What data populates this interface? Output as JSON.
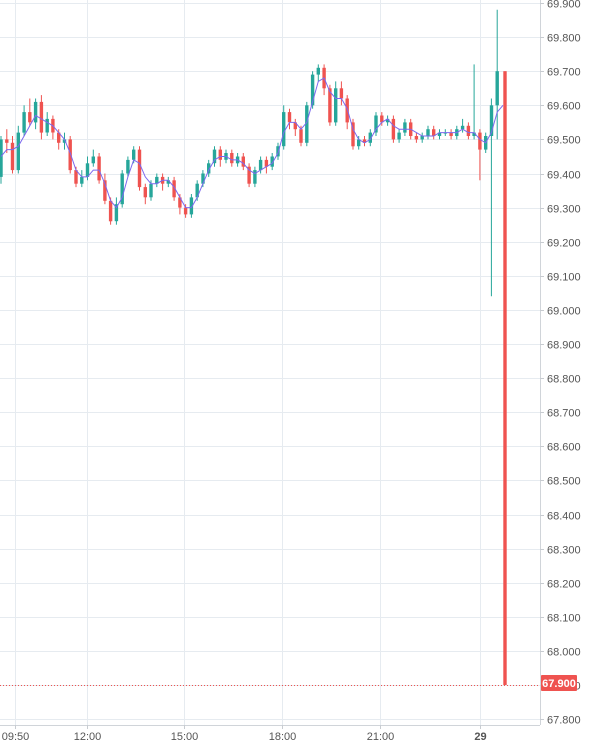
{
  "chart_data": {
    "type": "candlestick",
    "title": "",
    "xlabel": "",
    "ylabel": "",
    "ylim": [
      67.75,
      69.92
    ],
    "y_ticks": [
      "69.900",
      "69.800",
      "69.700",
      "69.600",
      "69.500",
      "69.400",
      "69.300",
      "69.200",
      "69.100",
      "69.000",
      "68.900",
      "68.800",
      "68.700",
      "68.600",
      "68.500",
      "68.400",
      "68.300",
      "68.200",
      "68.100",
      "68.000",
      "67.900",
      "67.800"
    ],
    "x_ticks": [
      "09:50",
      "12:00",
      "15:00",
      "18:00",
      "21:00",
      "29"
    ],
    "current_price_label": "67.900",
    "current_price": 67.9,
    "grid": true,
    "colors": {
      "up": "#26a69a",
      "down": "#ef5350",
      "ma": "#7b68ee",
      "grid": "#e6ebf0",
      "axis_text": "#555555",
      "price_tag": "#ef5350"
    },
    "candles": [
      [
        69.39,
        69.5,
        69.51,
        69.37
      ],
      [
        69.5,
        69.49,
        69.53,
        69.46
      ],
      [
        69.49,
        69.41,
        69.51,
        69.4
      ],
      [
        69.41,
        69.52,
        69.54,
        69.4
      ],
      [
        69.52,
        69.58,
        69.6,
        69.51
      ],
      [
        69.58,
        69.55,
        69.62,
        69.54
      ],
      [
        69.55,
        69.61,
        69.62,
        69.53
      ],
      [
        69.61,
        69.52,
        69.63,
        69.5
      ],
      [
        69.52,
        69.56,
        69.58,
        69.51
      ],
      [
        69.56,
        69.52,
        69.57,
        69.5
      ],
      [
        69.52,
        69.49,
        69.53,
        69.47
      ],
      [
        69.49,
        69.5,
        69.52,
        69.47
      ],
      [
        69.5,
        69.41,
        69.51,
        69.4
      ],
      [
        69.41,
        69.37,
        69.42,
        69.36
      ],
      [
        69.37,
        69.39,
        69.41,
        69.36
      ],
      [
        69.39,
        69.43,
        69.45,
        69.38
      ],
      [
        69.43,
        69.45,
        69.47,
        69.42
      ],
      [
        69.45,
        69.38,
        69.46,
        69.37
      ],
      [
        69.38,
        69.32,
        69.4,
        69.31
      ],
      [
        69.32,
        69.26,
        69.33,
        69.25
      ],
      [
        69.26,
        69.31,
        69.33,
        69.25
      ],
      [
        69.31,
        69.4,
        69.41,
        69.3
      ],
      [
        69.4,
        69.44,
        69.45,
        69.39
      ],
      [
        69.44,
        69.47,
        69.48,
        69.43
      ],
      [
        69.47,
        69.36,
        69.48,
        69.35
      ],
      [
        69.36,
        69.33,
        69.37,
        69.31
      ],
      [
        69.33,
        69.37,
        69.38,
        69.32
      ],
      [
        69.37,
        69.39,
        69.4,
        69.36
      ],
      [
        69.39,
        69.37,
        69.4,
        69.35
      ],
      [
        69.37,
        69.38,
        69.39,
        69.36
      ],
      [
        69.38,
        69.33,
        69.39,
        69.32
      ],
      [
        69.33,
        69.3,
        69.34,
        69.28
      ],
      [
        69.3,
        69.28,
        69.31,
        69.27
      ],
      [
        69.28,
        69.33,
        69.34,
        69.27
      ],
      [
        69.33,
        69.37,
        69.38,
        69.32
      ],
      [
        69.37,
        69.4,
        69.41,
        69.36
      ],
      [
        69.4,
        69.43,
        69.44,
        69.39
      ],
      [
        69.43,
        69.47,
        69.48,
        69.42
      ],
      [
        69.47,
        69.44,
        69.48,
        69.42
      ],
      [
        69.44,
        69.46,
        69.47,
        69.43
      ],
      [
        69.46,
        69.43,
        69.47,
        69.42
      ],
      [
        69.43,
        69.45,
        69.46,
        69.42
      ],
      [
        69.45,
        69.42,
        69.46,
        69.41
      ],
      [
        69.42,
        69.37,
        69.43,
        69.36
      ],
      [
        69.37,
        69.41,
        69.42,
        69.36
      ],
      [
        69.41,
        69.44,
        69.45,
        69.4
      ],
      [
        69.44,
        69.42,
        69.45,
        69.4
      ],
      [
        69.42,
        69.45,
        69.46,
        69.41
      ],
      [
        69.45,
        69.48,
        69.49,
        69.44
      ],
      [
        69.48,
        69.58,
        69.6,
        69.47
      ],
      [
        69.58,
        69.55,
        69.59,
        69.53
      ],
      [
        69.55,
        69.53,
        69.56,
        69.51
      ],
      [
        69.53,
        69.49,
        69.54,
        69.48
      ],
      [
        69.49,
        69.6,
        69.61,
        69.48
      ],
      [
        69.6,
        69.69,
        69.7,
        69.59
      ],
      [
        69.69,
        69.71,
        69.72,
        69.67
      ],
      [
        69.71,
        69.65,
        69.72,
        69.63
      ],
      [
        69.65,
        69.55,
        69.66,
        69.54
      ],
      [
        69.55,
        69.65,
        69.67,
        69.54
      ],
      [
        69.65,
        69.62,
        69.67,
        69.6
      ],
      [
        69.62,
        69.55,
        69.63,
        69.53
      ],
      [
        69.55,
        69.48,
        69.56,
        69.47
      ],
      [
        69.48,
        69.5,
        69.51,
        69.47
      ],
      [
        69.5,
        69.49,
        69.51,
        69.48
      ],
      [
        69.49,
        69.52,
        69.53,
        69.48
      ],
      [
        69.52,
        69.57,
        69.58,
        69.51
      ],
      [
        69.57,
        69.55,
        69.58,
        69.54
      ],
      [
        69.55,
        69.56,
        69.57,
        69.54
      ],
      [
        69.56,
        69.5,
        69.57,
        69.49
      ],
      [
        69.5,
        69.52,
        69.53,
        69.49
      ],
      [
        69.52,
        69.55,
        69.56,
        69.51
      ],
      [
        69.55,
        69.51,
        69.56,
        69.5
      ],
      [
        69.51,
        69.5,
        69.52,
        69.49
      ],
      [
        69.5,
        69.51,
        69.52,
        69.49
      ],
      [
        69.51,
        69.53,
        69.54,
        69.5
      ],
      [
        69.53,
        69.51,
        69.54,
        69.5
      ],
      [
        69.51,
        69.52,
        69.53,
        69.5
      ],
      [
        69.52,
        69.52,
        69.53,
        69.51
      ],
      [
        69.52,
        69.51,
        69.53,
        69.5
      ],
      [
        69.51,
        69.53,
        69.54,
        69.5
      ],
      [
        69.53,
        69.54,
        69.56,
        69.52
      ],
      [
        69.54,
        69.51,
        69.55,
        69.5
      ],
      [
        69.51,
        69.52,
        69.72,
        69.5
      ],
      [
        69.52,
        69.47,
        69.53,
        69.38
      ],
      [
        69.47,
        69.51,
        69.52,
        69.46
      ],
      [
        69.51,
        69.6,
        69.62,
        69.04
      ],
      [
        69.6,
        69.7,
        69.88,
        69.5
      ],
      [
        69.7,
        67.9,
        69.7,
        67.9
      ]
    ],
    "moving_average": [
      69.45,
      69.47,
      69.47,
      69.48,
      69.51,
      69.54,
      69.57,
      69.56,
      69.55,
      69.54,
      69.52,
      69.5,
      69.46,
      69.41,
      69.39,
      69.39,
      69.41,
      69.41,
      69.37,
      69.32,
      69.3,
      69.33,
      69.39,
      69.44,
      69.43,
      69.39,
      69.37,
      69.37,
      69.38,
      69.38,
      69.36,
      69.33,
      69.3,
      69.3,
      69.33,
      69.37,
      69.41,
      69.44,
      69.45,
      69.45,
      69.44,
      69.44,
      69.43,
      69.41,
      69.4,
      69.41,
      69.42,
      69.43,
      69.46,
      69.52,
      69.55,
      69.55,
      69.53,
      69.55,
      69.61,
      69.67,
      69.68,
      69.64,
      69.62,
      69.62,
      69.59,
      69.53,
      69.5,
      69.49,
      69.5,
      69.53,
      69.55,
      69.56,
      69.54,
      69.53,
      69.53,
      69.53,
      69.52,
      69.51,
      69.51,
      69.51,
      69.52,
      69.52,
      69.52,
      69.52,
      69.53,
      69.52,
      69.52,
      69.5,
      69.49,
      69.52,
      69.58,
      69.6
    ]
  }
}
